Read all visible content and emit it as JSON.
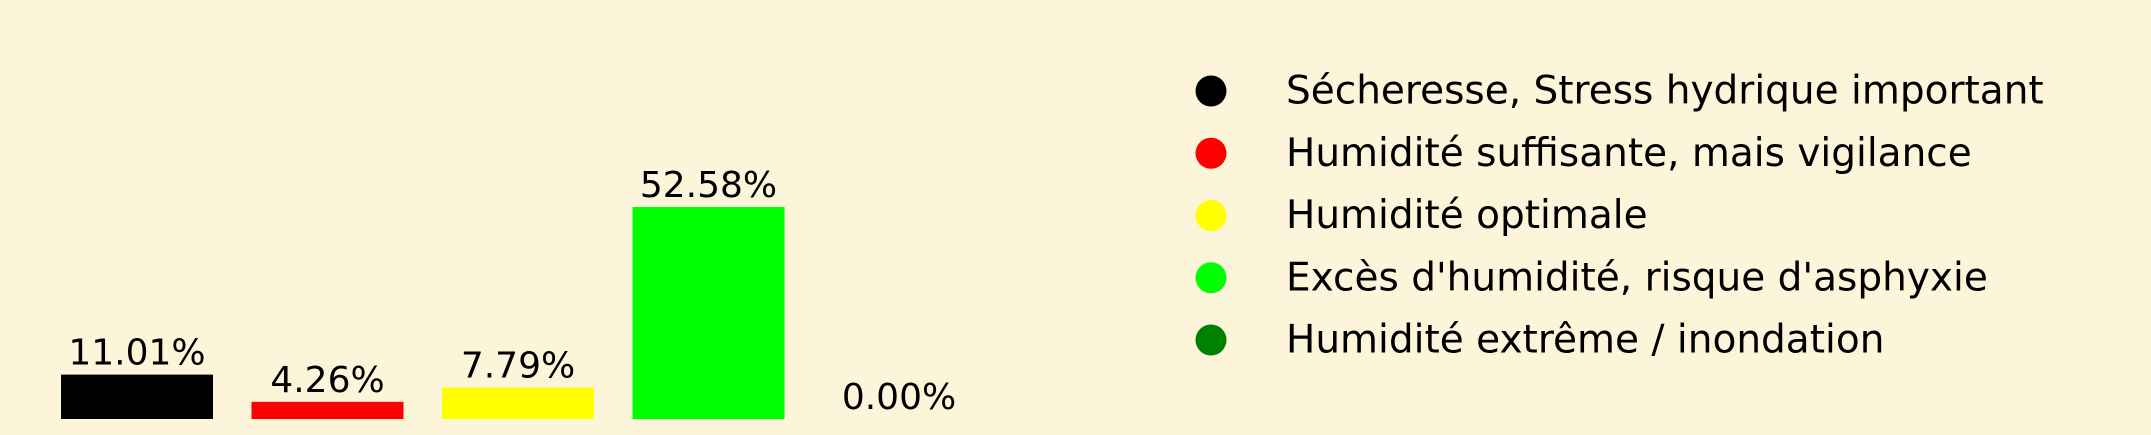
{
  "page": {
    "background": "#fdf5da"
  },
  "chart_data": {
    "type": "bar",
    "categories": [
      "Sécheresse, Stress hydrique important",
      "Humidité suffisante, mais vigilance",
      "Humidité optimale",
      "Excès d'humidité, risque d'asphyxie",
      "Humidité extrême / inondation"
    ],
    "values": [
      11.01,
      4.26,
      7.79,
      52.58,
      0.0
    ],
    "value_labels": [
      "11.01%",
      "4.26%",
      "7.79%",
      "52.58%",
      "0.00%"
    ],
    "colors": [
      "#000000",
      "#ff0000",
      "#ffff00",
      "#00ff00",
      "#008000"
    ],
    "ylim": [
      0,
      52.58
    ],
    "title": "",
    "xlabel": "",
    "ylabel": "",
    "grid": false,
    "axes_visible": false,
    "legend": {
      "position": "right",
      "marker": "circle",
      "entries": [
        {
          "label": "Sécheresse, Stress hydrique important",
          "color": "#000000"
        },
        {
          "label": "Humidité suffisante, mais vigilance",
          "color": "#ff0000"
        },
        {
          "label": "Humidité optimale",
          "color": "#ffff00"
        },
        {
          "label": "Excès d'humidité, risque d'asphyxie",
          "color": "#00ff00"
        },
        {
          "label": "Humidité extrême / inondation",
          "color": "#008000"
        }
      ]
    }
  }
}
